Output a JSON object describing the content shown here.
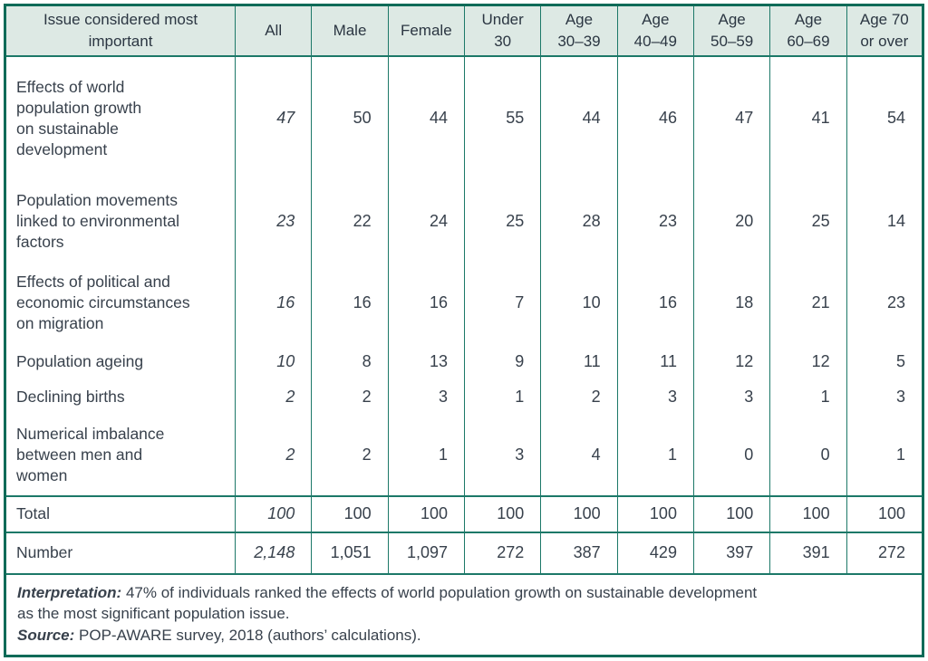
{
  "table": {
    "columns": [
      "Issue considered most\nimportant",
      "All",
      "Male",
      "Female",
      "Under\n30",
      "Age\n30–39",
      "Age\n40–49",
      "Age\n50–59",
      "Age\n60–69",
      "Age 70\nor over"
    ],
    "rows": [
      {
        "label": "Effects of world\npopulation growth\non sustainable\ndevelopment",
        "values": [
          "47",
          "50",
          "44",
          "55",
          "44",
          "46",
          "47",
          "41",
          "54"
        ]
      },
      {
        "label": "Population movements\nlinked to environmental\nfactors",
        "values": [
          "23",
          "22",
          "24",
          "25",
          "28",
          "23",
          "20",
          "25",
          "14"
        ]
      },
      {
        "label": "Effects of political and\neconomic circumstances\non migration",
        "values": [
          "16",
          "16",
          "16",
          "7",
          "10",
          "16",
          "18",
          "21",
          "23"
        ]
      },
      {
        "label": "Population ageing",
        "values": [
          "10",
          "8",
          "13",
          "9",
          "11",
          "11",
          "12",
          "12",
          "5"
        ]
      },
      {
        "label": "Declining births",
        "values": [
          "2",
          "2",
          "3",
          "1",
          "2",
          "3",
          "3",
          "1",
          "3"
        ]
      },
      {
        "label": "Numerical imbalance\nbetween men and\nwomen",
        "values": [
          "2",
          "2",
          "1",
          "3",
          "4",
          "1",
          "0",
          "0",
          "1"
        ]
      }
    ],
    "total_row": {
      "label": "Total",
      "values": [
        "100",
        "100",
        "100",
        "100",
        "100",
        "100",
        "100",
        "100",
        "100"
      ]
    },
    "number_row": {
      "label": "Number",
      "values": [
        "2,148",
        "1,051",
        "1,097",
        "272",
        "387",
        "429",
        "397",
        "391",
        "272"
      ]
    }
  },
  "footer": {
    "interpretation_label": "Interpretation:",
    "interpretation_text": " 47% of individuals ranked the effects of world population growth on sustainable development\nas the most significant population issue.",
    "source_label": "Source:",
    "source_text": " POP-AWARE survey, 2018 (authors’ calculations)."
  },
  "colors": {
    "outer_border": "#0d6b58",
    "grid_line": "#1c7868",
    "header_background": "#dde9e4",
    "text": "#38414c"
  }
}
